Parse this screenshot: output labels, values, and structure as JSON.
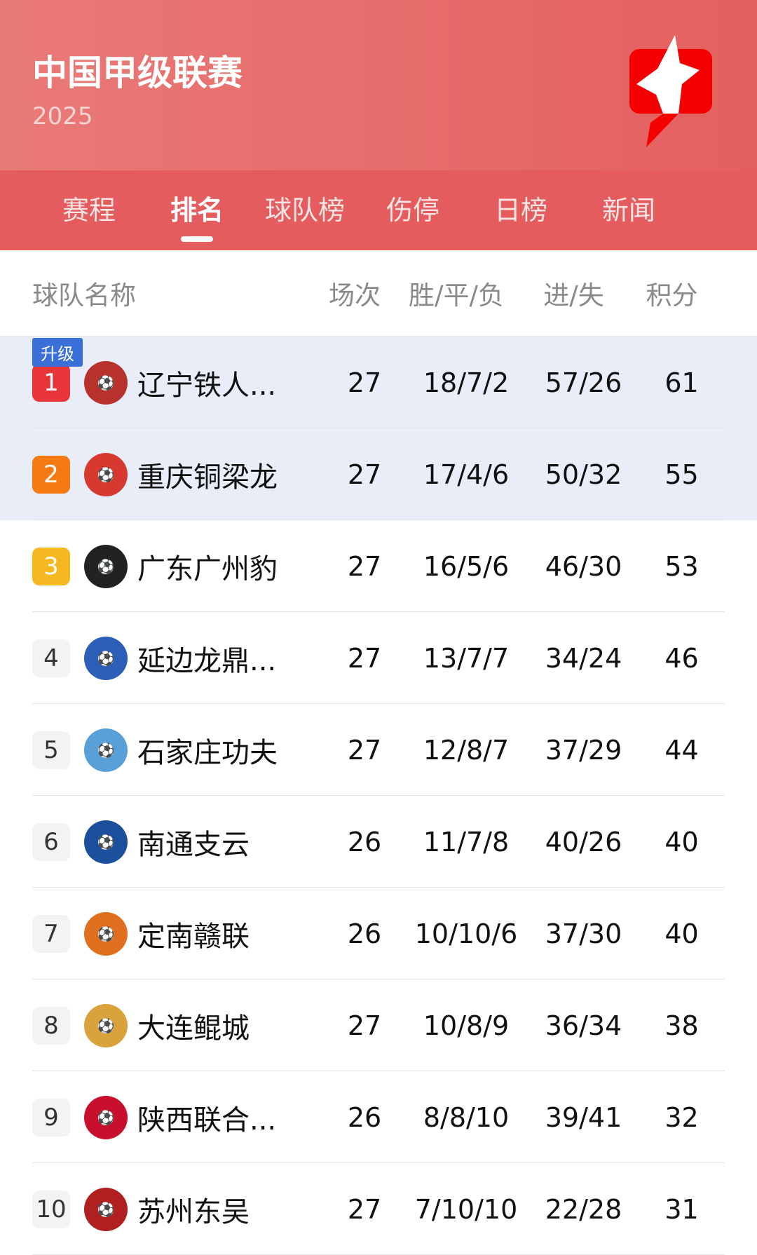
{
  "header": {
    "title": "中国甲级联赛",
    "season": "2025",
    "logo_icon": "red-star-flag-logo"
  },
  "tabs": [
    {
      "label": "赛程"
    },
    {
      "label": "排名",
      "active": true
    },
    {
      "label": "球队榜"
    },
    {
      "label": "伤停"
    },
    {
      "label": "日榜"
    },
    {
      "label": "新闻"
    }
  ],
  "columns": {
    "team": "球队名称",
    "played": "场次",
    "wdl": "胜/平/负",
    "goals": "进/失",
    "points": "积分"
  },
  "promotion_badge": "升级",
  "colors": {
    "header": "#e4605f",
    "rank1": "#e8353a",
    "rank2": "#f57a14",
    "rank3": "#f6b820",
    "highlight": "#e8edf8",
    "badge": "#3a6fd8"
  },
  "rows": [
    {
      "rank": "1",
      "team": "辽宁铁人...",
      "played": "27",
      "wdl": "18/7/2",
      "goals": "57/26",
      "points": "61"
    },
    {
      "rank": "2",
      "team": "重庆铜梁龙",
      "played": "27",
      "wdl": "17/4/6",
      "goals": "50/32",
      "points": "55"
    },
    {
      "rank": "3",
      "team": "广东广州豹",
      "played": "27",
      "wdl": "16/5/6",
      "goals": "46/30",
      "points": "53"
    },
    {
      "rank": "4",
      "team": "延边龙鼎...",
      "played": "27",
      "wdl": "13/7/7",
      "goals": "34/24",
      "points": "46"
    },
    {
      "rank": "5",
      "team": "石家庄功夫",
      "played": "27",
      "wdl": "12/8/7",
      "goals": "37/29",
      "points": "44"
    },
    {
      "rank": "6",
      "team": "南通支云",
      "played": "26",
      "wdl": "11/7/8",
      "goals": "40/26",
      "points": "40"
    },
    {
      "rank": "7",
      "team": "定南赣联",
      "played": "26",
      "wdl": "10/10/6",
      "goals": "37/30",
      "points": "40"
    },
    {
      "rank": "8",
      "team": "大连鲲城",
      "played": "27",
      "wdl": "10/8/9",
      "goals": "36/34",
      "points": "38"
    },
    {
      "rank": "9",
      "team": "陕西联合...",
      "played": "26",
      "wdl": "8/8/10",
      "goals": "39/41",
      "points": "32"
    },
    {
      "rank": "10",
      "team": "苏州东吴",
      "played": "27",
      "wdl": "7/10/10",
      "goals": "22/28",
      "points": "31"
    }
  ]
}
